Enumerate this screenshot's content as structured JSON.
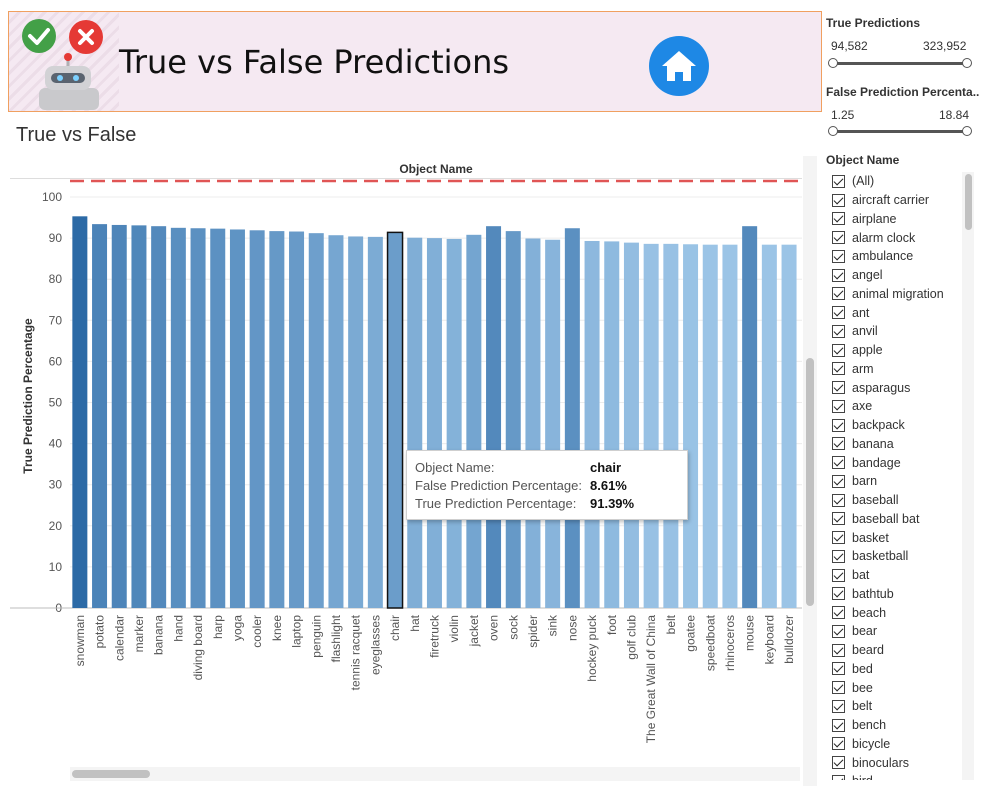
{
  "banner": {
    "title": "True vs False Predictions",
    "logo_icon": "robot-check-cross-icon",
    "home_icon": "home-icon",
    "home_color": "#1e88e5"
  },
  "sheet_title": "True vs False",
  "header_label": "Object Name",
  "tooltip": {
    "object_key": "Object Name:",
    "object_val": "chair",
    "false_key": "False Prediction Percentage:",
    "false_val": "8.61%",
    "true_key": "True Prediction Percentage:",
    "true_val": "91.39%"
  },
  "filters": {
    "true_predictions": {
      "title": "True Predictions",
      "min": "94,582",
      "max": "323,952"
    },
    "false_pct": {
      "title": "False Prediction Percenta..",
      "min": "1.25",
      "max": "18.84"
    },
    "object_name": {
      "title": "Object Name",
      "items": [
        "(All)",
        "aircraft carrier",
        "airplane",
        "alarm clock",
        "ambulance",
        "angel",
        "animal migration",
        "ant",
        "anvil",
        "apple",
        "arm",
        "asparagus",
        "axe",
        "backpack",
        "banana",
        "bandage",
        "barn",
        "baseball",
        "baseball bat",
        "basket",
        "basketball",
        "bat",
        "bathtub",
        "beach",
        "bear",
        "beard",
        "bed",
        "bee",
        "belt",
        "bench",
        "bicycle",
        "binoculars",
        "bird"
      ]
    }
  },
  "chart_data": {
    "type": "bar",
    "title": "True vs False",
    "xlabel": "Object Name",
    "ylabel": "True Prediction Percentage",
    "ylim": [
      0,
      100
    ],
    "yticks": [
      0,
      10,
      20,
      30,
      40,
      50,
      60,
      70,
      80,
      90,
      100
    ],
    "reference_line": {
      "style": "dashed",
      "color": "#e05555"
    },
    "highlighted": "chair",
    "color_dark": "#2c6aa6",
    "color_light": "#9bc4e6",
    "categories": [
      "snowman",
      "potato",
      "calendar",
      "marker",
      "banana",
      "hand",
      "diving board",
      "harp",
      "yoga",
      "cooler",
      "knee",
      "laptop",
      "penguin",
      "flashlight",
      "tennis racquet",
      "eyeglasses",
      "chair",
      "hat",
      "firetruck",
      "violin",
      "jacket",
      "oven",
      "sock",
      "spider",
      "sink",
      "nose",
      "hockey puck",
      "foot",
      "golf club",
      "The Great Wall of China",
      "belt",
      "goatee",
      "speedboat",
      "rhinoceros",
      "mouse",
      "keyboard",
      "bulldozer"
    ],
    "values": [
      95.3,
      93.4,
      93.2,
      93.1,
      92.9,
      92.5,
      92.4,
      92.3,
      92.1,
      91.9,
      91.7,
      91.6,
      91.2,
      90.7,
      90.4,
      90.3,
      91.39,
      90.1,
      90.0,
      89.8,
      90.8,
      92.9,
      91.7,
      89.9,
      89.6,
      92.4,
      89.3,
      89.2,
      88.9,
      88.6,
      88.6,
      88.5,
      88.4,
      88.4,
      92.9,
      88.4,
      88.4
    ]
  }
}
